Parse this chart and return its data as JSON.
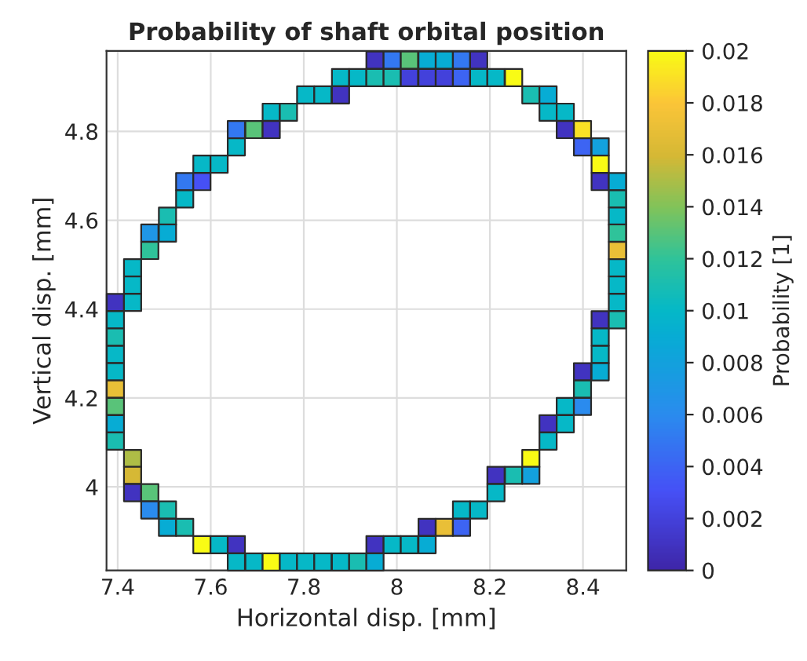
{
  "chart_data": {
    "type": "scatter",
    "title": "Probability of shaft orbital position",
    "xlabel": "Horizontal disp. [mm]",
    "ylabel": "Vertical disp. [mm]",
    "clabel": "Probability [1]",
    "x": [
      7.953,
      7.99,
      8.027,
      8.065,
      8.102,
      8.139,
      8.176,
      7.879,
      7.916,
      7.953,
      7.99,
      8.027,
      8.065,
      8.102,
      8.139,
      8.176,
      8.213,
      8.251,
      7.804,
      7.841,
      7.879,
      8.288,
      8.325,
      7.73,
      7.767,
      8.325,
      8.362,
      7.655,
      7.693,
      7.73,
      8.362,
      8.399,
      7.655,
      8.399,
      8.437,
      7.581,
      7.618,
      8.437,
      7.544,
      7.581,
      8.437,
      8.474,
      7.544,
      8.474,
      7.507,
      8.474,
      7.469,
      7.507,
      8.474,
      7.469,
      8.474,
      7.432,
      8.474,
      7.432,
      8.474,
      7.395,
      7.432,
      8.474,
      7.395,
      8.437,
      8.474,
      7.395,
      8.437,
      7.395,
      8.437,
      7.395,
      8.399,
      8.437,
      7.395,
      8.399,
      7.395,
      8.362,
      8.399,
      7.395,
      8.325,
      8.362,
      7.395,
      8.325,
      7.432,
      8.288,
      7.432,
      8.213,
      8.251,
      8.288,
      7.432,
      7.469,
      8.213,
      7.469,
      7.507,
      8.139,
      8.176,
      7.507,
      7.544,
      8.065,
      8.102,
      8.139,
      7.581,
      7.618,
      7.655,
      7.953,
      7.99,
      8.027,
      8.065,
      7.655,
      7.693,
      7.73,
      7.767,
      7.804,
      7.841,
      7.879,
      7.916,
      7.953
    ],
    "values": [
      4.96,
      4.96,
      4.96,
      4.96,
      4.96,
      4.96,
      4.96,
      4.921,
      4.921,
      4.921,
      4.921,
      4.921,
      4.921,
      4.921,
      4.921,
      4.921,
      4.921,
      4.921,
      4.882,
      4.882,
      4.882,
      4.882,
      4.882,
      4.843,
      4.843,
      4.843,
      4.843,
      4.804,
      4.804,
      4.804,
      4.804,
      4.804,
      4.765,
      4.765,
      4.765,
      4.726,
      4.726,
      4.726,
      4.687,
      4.687,
      4.687,
      4.687,
      4.648,
      4.648,
      4.609,
      4.609,
      4.571,
      4.571,
      4.571,
      4.532,
      4.532,
      4.493,
      4.493,
      4.454,
      4.454,
      4.415,
      4.415,
      4.415,
      4.376,
      4.376,
      4.376,
      4.337,
      4.337,
      4.298,
      4.298,
      4.259,
      4.259,
      4.259,
      4.22,
      4.22,
      4.181,
      4.181,
      4.181,
      4.142,
      4.142,
      4.142,
      4.103,
      4.103,
      4.064,
      4.064,
      4.026,
      4.026,
      4.026,
      4.026,
      3.987,
      3.987,
      3.987,
      3.948,
      3.948,
      3.948,
      3.948,
      3.909,
      3.909,
      3.909,
      3.909,
      3.909,
      3.87,
      3.87,
      3.87,
      3.87,
      3.87,
      3.87,
      3.87,
      3.831,
      3.831,
      3.831,
      3.831,
      3.831,
      3.831,
      3.831,
      3.831,
      3.831
    ],
    "cvalues": [
      0.001,
      0.005,
      0.013,
      0.009,
      0.009,
      0.005,
      0.001,
      0.01,
      0.01,
      0.011,
      0.011,
      0.002,
      0.002,
      0.002,
      0.004,
      0.01,
      0.01,
      0.02,
      0.01,
      0.01,
      0.001,
      0.011,
      0.009,
      0.01,
      0.011,
      0.01,
      0.01,
      0.005,
      0.013,
      0.001,
      0.001,
      0.019,
      0.01,
      0.004,
      0.008,
      0.01,
      0.01,
      0.02,
      0.005,
      0.003,
      0.001,
      0.009,
      0.01,
      0.011,
      0.011,
      0.01,
      0.007,
      0.009,
      0.012,
      0.012,
      0.017,
      0.01,
      0.01,
      0.01,
      0.01,
      0.001,
      0.01,
      0.01,
      0.01,
      0.001,
      0.011,
      0.011,
      0.01,
      0.01,
      0.01,
      0.01,
      0.001,
      0.009,
      0.017,
      0.011,
      0.013,
      0.01,
      0.006,
      0.009,
      0.001,
      0.01,
      0.011,
      0.01,
      0.015,
      0.02,
      0.016,
      0.001,
      0.011,
      0.008,
      0.001,
      0.013,
      0.01,
      0.006,
      0.011,
      0.01,
      0.01,
      0.009,
      0.011,
      0.001,
      0.017,
      0.004,
      0.02,
      0.01,
      0.001,
      0.001,
      0.01,
      0.01,
      0.009,
      0.01,
      0.01,
      0.02,
      0.01,
      0.01,
      0.01,
      0.01,
      0.011,
      0.009
    ],
    "marker": "square",
    "xlim": [
      7.376,
      8.493
    ],
    "ylim": [
      3.812,
      4.981
    ],
    "xticks": [
      7.4,
      7.6,
      7.8,
      8,
      8.2,
      8.4
    ],
    "yticks": [
      4,
      4.2,
      4.4,
      4.6,
      4.8
    ],
    "clim": [
      0,
      0.02
    ],
    "cticks": [
      0,
      0.002,
      0.004,
      0.006,
      0.008,
      0.01,
      0.012,
      0.014,
      0.016,
      0.018,
      0.02
    ],
    "grid": true
  }
}
